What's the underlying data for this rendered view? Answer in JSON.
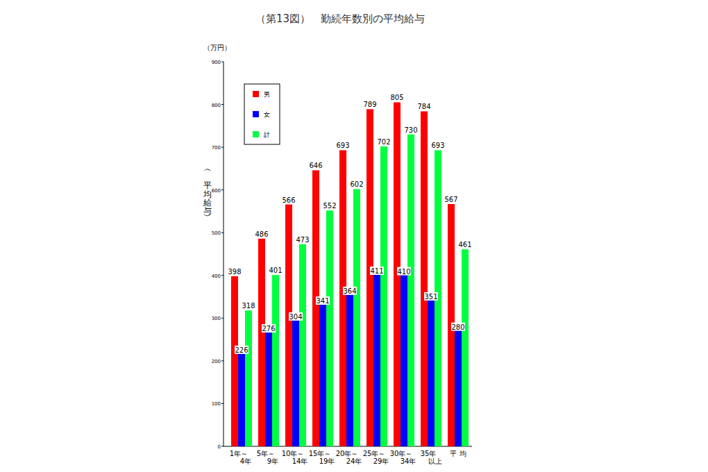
{
  "chart_data": {
    "type": "bar",
    "title": "（第13図）　勤続年数別の平均給与",
    "y_unit": "（万円）",
    "y_label": "（平均給与）",
    "categories": [
      "1年～\n4年",
      "5年～\n9年",
      "10年～\n14年",
      "15年～\n19年",
      "20年～\n24年",
      "25年～\n29年",
      "30年～\n34年",
      "35年\n以上",
      "平 均"
    ],
    "series": [
      {
        "name": "男",
        "color": "#ff0000",
        "values": [
          398,
          486,
          566,
          646,
          693,
          789,
          805,
          784,
          567
        ]
      },
      {
        "name": "女",
        "color": "#0000ff",
        "values": [
          226,
          276,
          304,
          341,
          364,
          411,
          410,
          351,
          280
        ]
      },
      {
        "name": "計",
        "color": "#00ff40",
        "values": [
          318,
          401,
          473,
          552,
          602,
          702,
          730,
          693,
          461
        ]
      }
    ],
    "ylim": [
      0,
      900
    ],
    "yticks": [
      0,
      100,
      200,
      300,
      400,
      500,
      600,
      700,
      800,
      900
    ],
    "grid": false,
    "legend": "upper left",
    "data_labels": true
  }
}
